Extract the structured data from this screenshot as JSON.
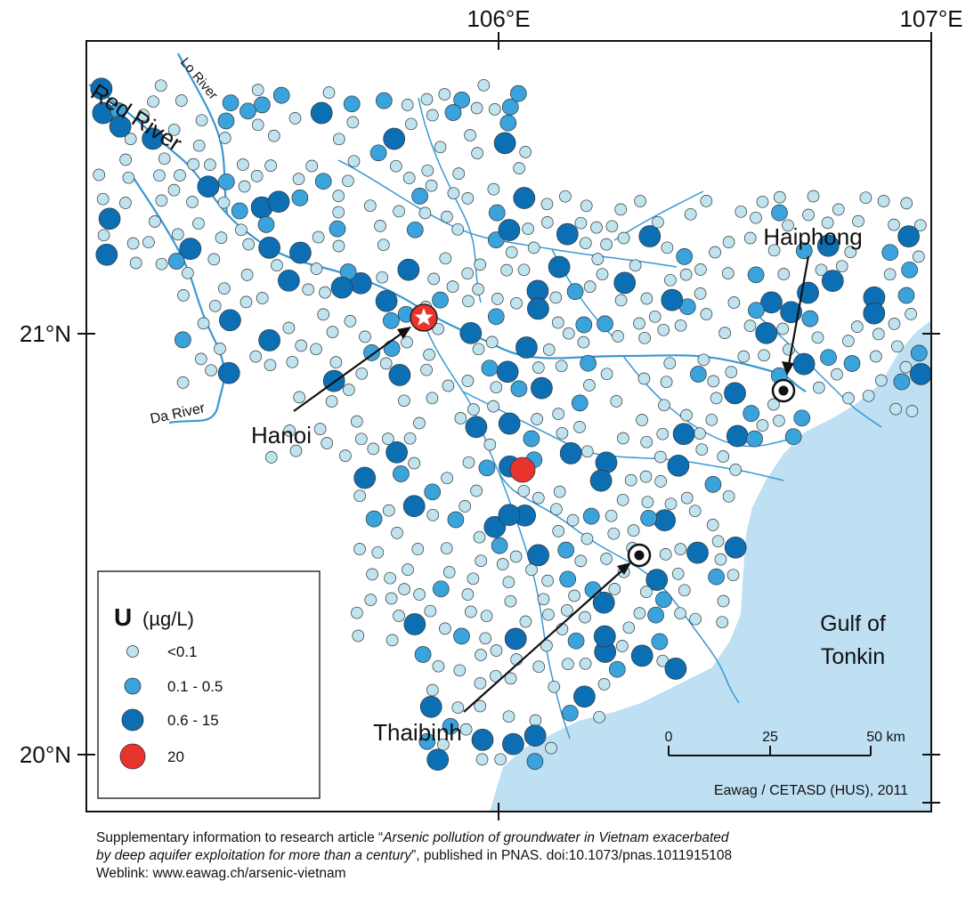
{
  "map": {
    "longitude_ticks": [
      "106°E",
      "107°E"
    ],
    "latitude_ticks": [
      "21°N",
      "20°N"
    ],
    "rivers": [
      "Red River",
      "Lo River",
      "Da River"
    ],
    "cities": [
      {
        "name": "Hanoi",
        "marker": "star-icon"
      },
      {
        "name": "Haiphong",
        "marker": "bullseye-icon"
      },
      {
        "name": "Thaibinh",
        "marker": "bullseye-icon"
      }
    ],
    "sea_label_line1": "Gulf of",
    "sea_label_line2": "Tonkin",
    "colors": {
      "sea": "#bfe0f2",
      "river": "#3a98d4",
      "lt_0_1": "#bfe3ef",
      "r_0_1_0_5": "#3aa3dc",
      "r_0_6_15": "#0c6fb4",
      "r_20": "#e8342c"
    }
  },
  "legend": {
    "title_symbol": "U",
    "title_unit": "(µg/L)",
    "classes": [
      {
        "label": "<0.1",
        "icon": "circle-small-icon"
      },
      {
        "label": "0.1 - 0.5",
        "icon": "circle-medium-icon"
      },
      {
        "label": "0.6 - 15",
        "icon": "circle-large-icon"
      },
      {
        "label": "20",
        "icon": "circle-red-icon"
      }
    ]
  },
  "scale_bar": {
    "ticks": [
      "0",
      "25",
      "50 km"
    ]
  },
  "credit": "Eawag / CETASD (HUS), 2011",
  "caption": {
    "prefix": "Supplementary information to research article “",
    "title_italic_1": "Arsenic pollution of groundwater in Vietnam exacerbated",
    "title_italic_2": "by deep aquifer exploitation for more than a century",
    "suffix": "”, published in PNAS. doi:10.1073/pnas.1011915108",
    "weblink": "Weblink: www.eawag.ch/arsenic-vietnam"
  }
}
